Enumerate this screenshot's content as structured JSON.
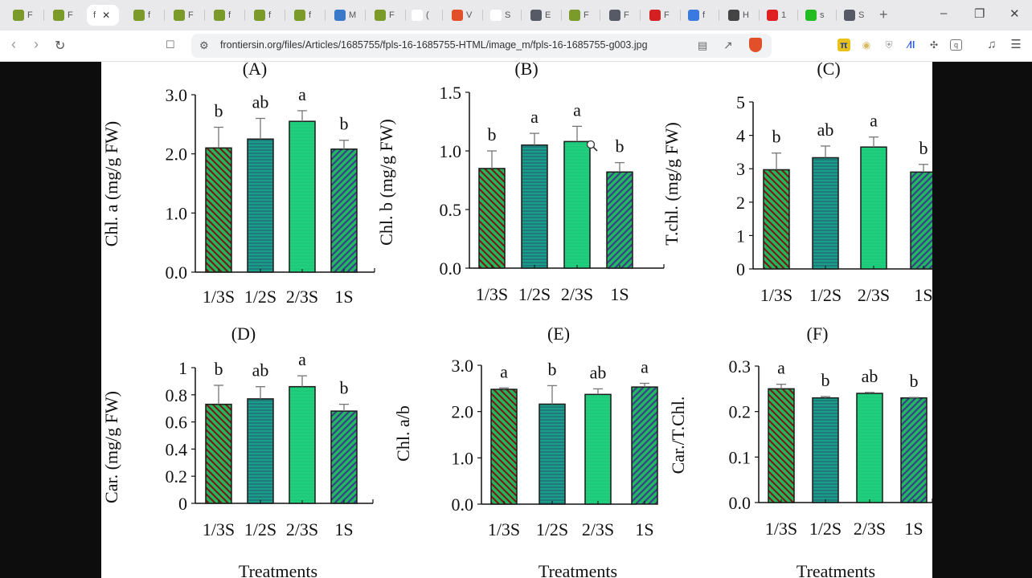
{
  "browser": {
    "tabs": [
      {
        "icon": "site-favicon",
        "label": "F",
        "color": "#7a9a2a"
      },
      {
        "icon": "site-favicon",
        "label": "F",
        "color": "#7a9a2a"
      },
      {
        "icon": "site-favicon",
        "label": "f",
        "color": "#ffffff",
        "active": true
      },
      {
        "icon": "site-favicon",
        "label": "f",
        "color": "#7a9a2a"
      },
      {
        "icon": "site-favicon",
        "label": "F",
        "color": "#7a9a2a"
      },
      {
        "icon": "site-favicon",
        "label": "f",
        "color": "#7a9a2a"
      },
      {
        "icon": "site-favicon",
        "label": "f",
        "color": "#7a9a2a"
      },
      {
        "icon": "site-favicon",
        "label": "f",
        "color": "#7a9a2a"
      },
      {
        "icon": "site-favicon",
        "label": "M",
        "color": "#3a7ac8"
      },
      {
        "icon": "site-favicon",
        "label": "F",
        "color": "#7a9a2a"
      },
      {
        "icon": "researchgate-icon",
        "label": "(",
        "color": "#ffffff"
      },
      {
        "icon": "brave-shield-icon",
        "label": "V",
        "color": "#e2502a"
      },
      {
        "icon": "e-icon",
        "label": "S",
        "color": "#ffffff"
      },
      {
        "icon": "bookmark-icon",
        "label": "E",
        "color": "#555a66"
      },
      {
        "icon": "site-favicon",
        "label": "F",
        "color": "#7a9a2a"
      },
      {
        "icon": "bookmark-icon",
        "label": "F",
        "color": "#555a66"
      },
      {
        "icon": "site-favicon",
        "label": "F",
        "color": "#d42020"
      },
      {
        "icon": "site-favicon",
        "label": "f",
        "color": "#3a7ae0"
      },
      {
        "icon": "globe-icon",
        "label": "H",
        "color": "#444444"
      },
      {
        "icon": "youtube-icon",
        "label": "1",
        "color": "#e02020"
      },
      {
        "icon": "k-icon",
        "label": "s",
        "color": "#22bb22"
      },
      {
        "icon": "bookmark-icon",
        "label": "S",
        "color": "#555a66"
      }
    ],
    "new_tab": "+",
    "window_controls": {
      "minimize": "–",
      "restore": "❐",
      "close": "✕"
    },
    "nav": {
      "back": "‹",
      "forward": "›",
      "reload": "↻",
      "bookmark": "🔖"
    },
    "url": "frontiersin.org/files/Articles/1685755/fpls-16-1685755-HTML/image_m/fpls-16-1685755-g003.jpg",
    "url_icons": {
      "site_settings": "⚙",
      "reader": "▤",
      "share": "↗",
      "brave": "▼"
    },
    "extensions": [
      "ext-icon",
      "ext-icon",
      "shield-icon",
      "chart-icon",
      "puzzle-icon",
      "wallet-icon",
      "music-icon",
      "menu-icon"
    ]
  },
  "chart_data": [
    {
      "type": "bar",
      "panel": "(A)",
      "ylabel": "Chl. a (mg/g FW)",
      "xlabel": "",
      "categories": [
        "1/3S",
        "1/2S",
        "2/3S",
        "1S"
      ],
      "values": [
        2.1,
        2.25,
        2.55,
        2.08
      ],
      "errors": [
        0.35,
        0.35,
        0.18,
        0.15
      ],
      "letters": [
        "b",
        "ab",
        "a",
        "b"
      ],
      "ylim": [
        0,
        3.0
      ],
      "yticks": [
        "0.0",
        "1.0",
        "2.0",
        "3.0"
      ],
      "ytick_values": [
        0,
        1,
        2,
        3
      ]
    },
    {
      "type": "bar",
      "panel": "(B)",
      "ylabel": "Chl.  b (mg/g FW)",
      "xlabel": "",
      "categories": [
        "1/3S",
        "1/2S",
        "2/3S",
        "1S"
      ],
      "values": [
        0.85,
        1.05,
        1.08,
        0.82
      ],
      "errors": [
        0.15,
        0.1,
        0.13,
        0.08
      ],
      "letters": [
        "b",
        "a",
        "a",
        "b"
      ],
      "ylim": [
        0,
        1.5
      ],
      "yticks": [
        "0.0",
        "0.5",
        "1.0",
        "1.5"
      ],
      "ytick_values": [
        0,
        0.5,
        1.0,
        1.5
      ]
    },
    {
      "type": "bar",
      "panel": "(C)",
      "ylabel": "T.chl. (mg/g FW)",
      "xlabel": "",
      "categories": [
        "1/3S",
        "1/2S",
        "2/3S",
        "1S"
      ],
      "values": [
        2.97,
        3.33,
        3.65,
        2.9
      ],
      "errors": [
        0.5,
        0.35,
        0.3,
        0.23
      ],
      "letters": [
        "b",
        "ab",
        "a",
        "b"
      ],
      "ylim": [
        0,
        5
      ],
      "yticks": [
        "0",
        "1",
        "2",
        "3",
        "4",
        "5"
      ],
      "ytick_values": [
        0,
        1,
        2,
        3,
        4,
        5
      ]
    },
    {
      "type": "bar",
      "panel": "(D)",
      "ylabel": "Car. (mg/g FW)",
      "xlabel": "Treatments",
      "categories": [
        "1/3S",
        "1/2S",
        "2/3S",
        "1S"
      ],
      "values": [
        0.73,
        0.77,
        0.86,
        0.68
      ],
      "errors": [
        0.14,
        0.09,
        0.08,
        0.05
      ],
      "letters": [
        "b",
        "ab",
        "a",
        "b"
      ],
      "ylim": [
        0,
        1
      ],
      "yticks": [
        "0",
        "0.2",
        "0.4",
        "0.6",
        "0.8",
        "1"
      ],
      "ytick_values": [
        0,
        0.2,
        0.4,
        0.6,
        0.8,
        1
      ]
    },
    {
      "type": "bar",
      "panel": "(E)",
      "ylabel": "Chl. a/b",
      "xlabel": "Treatments",
      "categories": [
        "1/3S",
        "1/2S",
        "2/3S",
        "1S"
      ],
      "values": [
        2.48,
        2.16,
        2.37,
        2.53
      ],
      "errors": [
        0.03,
        0.4,
        0.12,
        0.08
      ],
      "letters": [
        "a",
        "b",
        "ab",
        "a"
      ],
      "ylim": [
        0,
        3.0
      ],
      "yticks": [
        "0.0",
        "1.0",
        "2.0",
        "3.0"
      ],
      "ytick_values": [
        0,
        1,
        2,
        3
      ]
    },
    {
      "type": "bar",
      "panel": "(F)",
      "ylabel": "Car./T.Chl.",
      "xlabel": "Treatments",
      "categories": [
        "1/3S",
        "1/2S",
        "2/3S",
        "1S"
      ],
      "values": [
        0.25,
        0.23,
        0.24,
        0.23
      ],
      "errors": [
        0.01,
        0.003,
        0.002,
        0.001
      ],
      "letters": [
        "a",
        "b",
        "ab",
        "b"
      ],
      "ylim": [
        0,
        0.3
      ],
      "yticks": [
        "0.0",
        "0.1",
        "0.2",
        "0.3"
      ],
      "ytick_values": [
        0,
        0.1,
        0.2,
        0.3
      ]
    }
  ],
  "colors": {
    "bar_green": "#22b862",
    "bar_teal": "#1a9e86",
    "bar_mint": "#1fcf7c",
    "stripe_red": "#7a1a10",
    "stripe_blue": "#3a3d8a",
    "stripe_teal": "#1f6f7a"
  }
}
